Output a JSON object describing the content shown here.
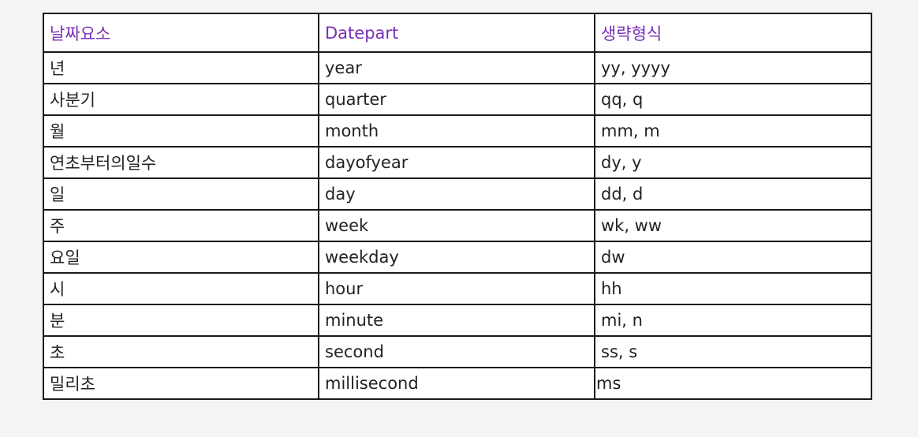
{
  "table": {
    "headers": [
      "날짜요소",
      "Datepart",
      "생략형식"
    ],
    "accent_color": "#7b2fb8",
    "rows": [
      [
        "년",
        "year",
        "yy, yyyy"
      ],
      [
        "사분기",
        "quarter",
        "qq, q"
      ],
      [
        "월",
        "month",
        "mm, m"
      ],
      [
        "연초부터의일수",
        "dayofyear",
        "dy, y"
      ],
      [
        "일",
        "day",
        "dd, d"
      ],
      [
        "주",
        "week",
        "wk, ww"
      ],
      [
        "요일",
        "weekday",
        "dw"
      ],
      [
        "시",
        "hour",
        "hh"
      ],
      [
        "분",
        "minute",
        "mi, n"
      ],
      [
        "초",
        "second",
        "ss, s"
      ],
      [
        "밀리초",
        "millisecond",
        "ms"
      ]
    ]
  }
}
